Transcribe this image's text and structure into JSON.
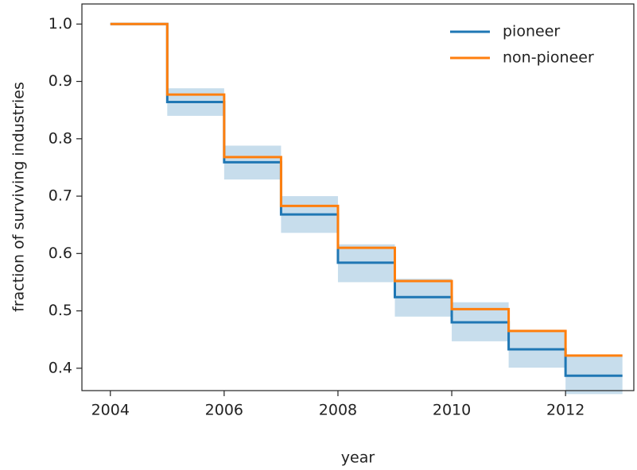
{
  "chart_data": {
    "type": "step",
    "x_label": "year",
    "y_label": "fraction of surviving industries",
    "x": [
      2004,
      2005,
      2006,
      2007,
      2008,
      2009,
      2010,
      2011,
      2012,
      2013
    ],
    "series": [
      {
        "name": "pioneer",
        "color": "#1f77b4",
        "values": [
          1.0,
          0.864,
          0.759,
          0.668,
          0.584,
          0.524,
          0.48,
          0.433,
          0.387,
          0.387
        ],
        "ci_lower": [
          1.0,
          0.84,
          0.729,
          0.636,
          0.55,
          0.49,
          0.447,
          0.401,
          0.355,
          0.355
        ],
        "ci_upper": [
          1.0,
          0.888,
          0.788,
          0.7,
          0.616,
          0.556,
          0.515,
          0.467,
          0.422,
          0.422
        ]
      },
      {
        "name": "non-pioneer",
        "color": "#ff7f0e",
        "values": [
          1.0,
          0.877,
          0.768,
          0.683,
          0.61,
          0.552,
          0.503,
          0.465,
          0.422,
          0.422
        ]
      }
    ],
    "xlim": [
      2003.5,
      2013.2
    ],
    "xticks": [
      2004,
      2006,
      2008,
      2010,
      2012
    ],
    "ylim": [
      0.361,
      1.035
    ],
    "yticks": [
      {
        "value": 0.4,
        "label": "0.4"
      },
      {
        "value": 0.5,
        "label": "0.5"
      },
      {
        "value": 0.6,
        "label": "0.6"
      },
      {
        "value": 0.7,
        "label": "0.7"
      },
      {
        "value": 0.8,
        "label": "0.8"
      },
      {
        "value": 0.9,
        "label": "0.9"
      },
      {
        "value": 1.0,
        "label": "1.0"
      }
    ],
    "legend": "upper right",
    "grid": false
  }
}
